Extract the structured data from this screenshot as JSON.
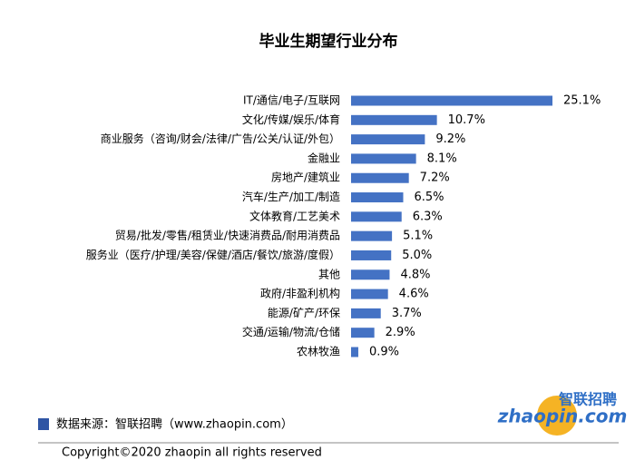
{
  "chart_data": {
    "type": "bar",
    "orientation": "horizontal",
    "title": "毕业生期望行业分布",
    "categories": [
      "IT/通信/电子/互联网",
      "文化/传媒/娱乐/体育",
      "商业服务（咨询/财会/法律/广告/公关/认证/外包）",
      "金融业",
      "房地产/建筑业",
      "汽车/生产/加工/制造",
      "文体教育/工艺美术",
      "贸易/批发/零售/租赁业/快速消费品/耐用消费品",
      "服务业（医疗/护理/美容/保健/酒店/餐饮/旅游/度假）",
      "其他",
      "政府/非盈利机构",
      "能源/矿产/环保",
      "交通/运输/物流/仓储",
      "农林牧渔"
    ],
    "values": [
      25.1,
      10.7,
      9.2,
      8.1,
      7.2,
      6.5,
      6.3,
      5.1,
      5.0,
      4.8,
      4.6,
      3.7,
      2.9,
      0.9
    ],
    "value_labels": [
      "25.1%",
      "10.7%",
      "9.2%",
      "8.1%",
      "7.2%",
      "6.5%",
      "6.3%",
      "5.1%",
      "5.0%",
      "4.8%",
      "4.6%",
      "3.7%",
      "2.9%",
      "0.9%"
    ],
    "color": "#4472c4",
    "source": "数据来源：智联招聘（www.zhaopin.com）"
  },
  "footer": {
    "copyright": "Copyright©2020  zhaopin all rights reserved"
  },
  "logo": {
    "name": "智联招聘",
    "domain": "zhaopin.com"
  }
}
